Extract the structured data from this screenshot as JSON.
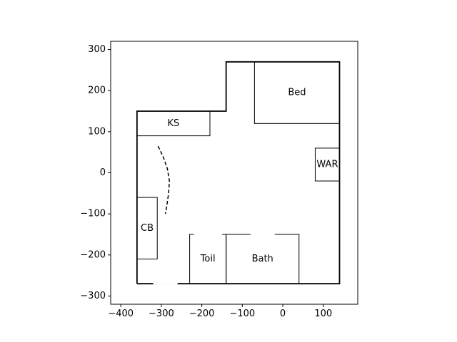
{
  "chart_data": {
    "type": "floorplan",
    "xlim": [
      -425,
      185
    ],
    "ylim": [
      -320,
      320
    ],
    "x_ticks": [
      -400,
      -300,
      -200,
      -100,
      0,
      100
    ],
    "y_ticks": [
      -300,
      -200,
      -100,
      0,
      100,
      200,
      300
    ],
    "x_tick_labels": [
      "−400",
      "−300",
      "−200",
      "−100",
      "0",
      "100"
    ],
    "y_tick_labels": [
      "−300",
      "−200",
      "−100",
      "0",
      "100",
      "200",
      "300"
    ],
    "outline": [
      [
        -360,
        -270
      ],
      [
        -360,
        150
      ],
      [
        -140,
        150
      ],
      [
        -140,
        270
      ],
      [
        140,
        270
      ],
      [
        140,
        -270
      ],
      [
        -360,
        -270
      ]
    ],
    "rooms": [
      {
        "label": "Bed",
        "x0": -70,
        "y0": 120,
        "x1": 140,
        "y1": 270
      },
      {
        "label": "KS",
        "x0": -360,
        "y0": 90,
        "x1": -180,
        "y1": 150
      },
      {
        "label": "WAR",
        "x0": 80,
        "y0": -20,
        "x1": 140,
        "y1": 60
      },
      {
        "label": "CB",
        "x0": -360,
        "y0": -210,
        "x1": -310,
        "y1": -60
      },
      {
        "label": "Toil",
        "x0": -230,
        "y0": -270,
        "x1": -140,
        "y1": -150
      },
      {
        "label": "Bath",
        "x0": -140,
        "y0": -270,
        "x1": 40,
        "y1": -150
      }
    ],
    "openings": [
      {
        "x0": -320,
        "y0": -270,
        "x1": -260,
        "y1": -270
      },
      {
        "x0": -220,
        "y0": -150,
        "x1": -150,
        "y1": -150
      },
      {
        "x0": -80,
        "y0": -150,
        "x1": -20,
        "y1": -150
      }
    ],
    "path": [
      [
        -308,
        65
      ],
      [
        -295,
        38
      ],
      [
        -285,
        10
      ],
      [
        -280,
        -20
      ],
      [
        -282,
        -50
      ],
      [
        -286,
        -78
      ],
      [
        -290,
        -100
      ]
    ]
  }
}
